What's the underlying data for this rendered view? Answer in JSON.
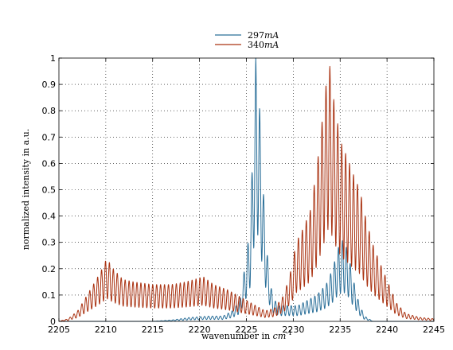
{
  "chart_data": {
    "type": "line",
    "title": "",
    "xlabel": "wavenumber in ",
    "xlabel_unit": "cm",
    "xlabel_unit_exp": "-1",
    "ylabel": "normalized intensity in a.u.",
    "xlim": [
      2205,
      2245
    ],
    "ylim": [
      0,
      1
    ],
    "xticks": [
      2205,
      2210,
      2215,
      2220,
      2225,
      2230,
      2235,
      2240,
      2245
    ],
    "yticks": [
      0,
      0.1,
      0.2,
      0.3,
      0.4,
      0.5,
      0.6,
      0.7,
      0.8,
      0.9,
      1
    ],
    "ytick_labels": [
      "0",
      "0.1",
      "0.2",
      "0.3",
      "0.4",
      "0.5",
      "0.6",
      "0.7",
      "0.8",
      "0.9",
      "1"
    ],
    "grid": true,
    "legend_position": "top-center",
    "series": [
      {
        "name": "297mA",
        "name_num": "297",
        "name_unit": "mA",
        "color": "#2a6f99",
        "envelope": [
          [
            2205,
            0
          ],
          [
            2210,
            0.0
          ],
          [
            2215,
            0.0
          ],
          [
            2217,
            0.005
          ],
          [
            2219,
            0.015
          ],
          [
            2221,
            0.02
          ],
          [
            2222.5,
            0.02
          ],
          [
            2223.5,
            0.04
          ],
          [
            2224.3,
            0.08
          ],
          [
            2224.8,
            0.2
          ],
          [
            2225.4,
            0.36
          ],
          [
            2226.0,
            1.0
          ],
          [
            2226.4,
            0.82
          ],
          [
            2226.8,
            0.5
          ],
          [
            2227.3,
            0.22
          ],
          [
            2227.8,
            0.09
          ],
          [
            2228.5,
            0.06
          ],
          [
            2229.5,
            0.06
          ],
          [
            2230.5,
            0.06
          ],
          [
            2231.5,
            0.08
          ],
          [
            2232.5,
            0.1
          ],
          [
            2233.5,
            0.14
          ],
          [
            2234.2,
            0.2
          ],
          [
            2234.8,
            0.28
          ],
          [
            2235.3,
            0.31
          ],
          [
            2235.8,
            0.27
          ],
          [
            2236.4,
            0.16
          ],
          [
            2237.0,
            0.07
          ],
          [
            2237.6,
            0.02
          ],
          [
            2238.5,
            0.0
          ],
          [
            2245,
            0
          ]
        ]
      },
      {
        "name": "340mA",
        "name_num": "340",
        "name_unit": "mA",
        "color": "#aa3312",
        "envelope": [
          [
            2205,
            0
          ],
          [
            2206,
            0.01
          ],
          [
            2207,
            0.04
          ],
          [
            2208,
            0.1
          ],
          [
            2209,
            0.16
          ],
          [
            2209.6,
            0.2
          ],
          [
            2210.1,
            0.24
          ],
          [
            2210.8,
            0.2
          ],
          [
            2211.8,
            0.16
          ],
          [
            2213,
            0.15
          ],
          [
            2215,
            0.14
          ],
          [
            2217,
            0.14
          ],
          [
            2218.5,
            0.15
          ],
          [
            2219.5,
            0.16
          ],
          [
            2220.4,
            0.17
          ],
          [
            2221.5,
            0.14
          ],
          [
            2223,
            0.12
          ],
          [
            2224,
            0.1
          ],
          [
            2225,
            0.08
          ],
          [
            2226,
            0.06
          ],
          [
            2227,
            0.04
          ],
          [
            2228,
            0.05
          ],
          [
            2229,
            0.1
          ],
          [
            2229.8,
            0.2
          ],
          [
            2230.3,
            0.3
          ],
          [
            2231,
            0.35
          ],
          [
            2231.8,
            0.42
          ],
          [
            2232.5,
            0.58
          ],
          [
            2233.2,
            0.8
          ],
          [
            2233.8,
            1.0
          ],
          [
            2234.4,
            0.82
          ],
          [
            2235.1,
            0.68
          ],
          [
            2235.8,
            0.62
          ],
          [
            2236.5,
            0.55
          ],
          [
            2237.1,
            0.5
          ],
          [
            2237.8,
            0.38
          ],
          [
            2238.6,
            0.28
          ],
          [
            2239.5,
            0.2
          ],
          [
            2240.2,
            0.14
          ],
          [
            2241,
            0.07
          ],
          [
            2242,
            0.03
          ],
          [
            2243.5,
            0.015
          ],
          [
            2245,
            0.01
          ]
        ]
      }
    ]
  }
}
